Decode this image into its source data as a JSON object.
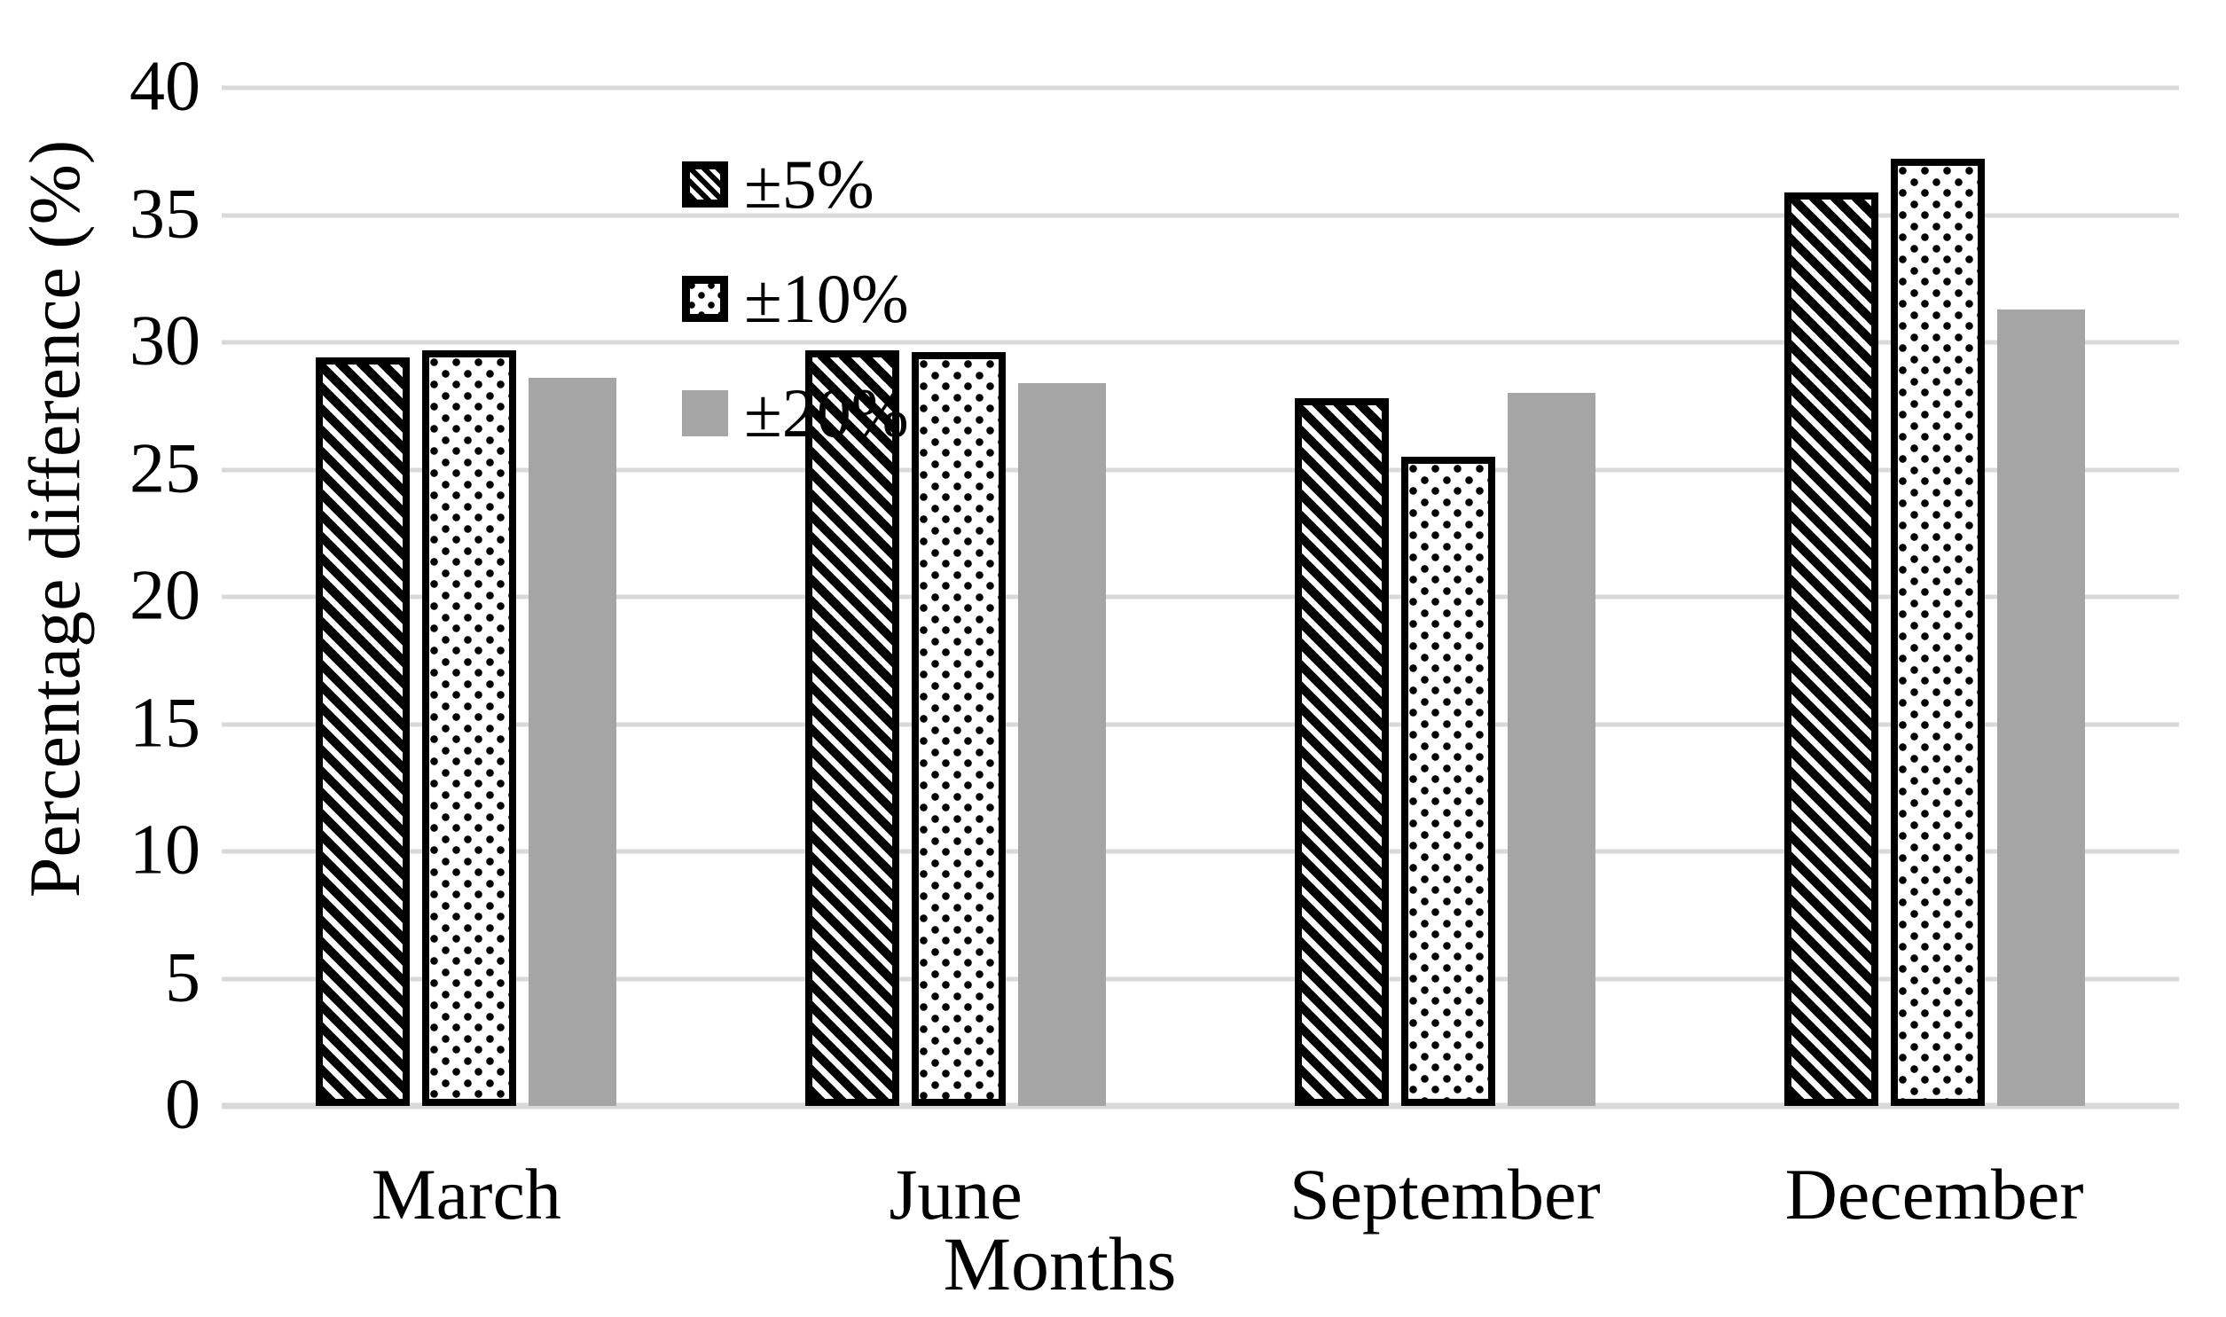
{
  "chart_data": {
    "type": "bar",
    "title": "",
    "categories": [
      "March",
      "June",
      "September",
      "December"
    ],
    "series": [
      {
        "name": "±5%",
        "pattern": "hatch",
        "values": [
          29.4,
          29.7,
          27.8,
          35.9
        ]
      },
      {
        "name": "±10%",
        "pattern": "dots",
        "values": [
          29.7,
          29.6,
          25.5,
          37.2
        ]
      },
      {
        "name": "±20%",
        "pattern": "gray",
        "values": [
          28.6,
          28.4,
          28.0,
          31.3
        ]
      }
    ],
    "xlabel": "Months",
    "ylabel": "Percentage difference (%)",
    "ylim": [
      0,
      40
    ],
    "y_ticks": [
      0,
      5,
      10,
      15,
      20,
      25,
      30,
      35,
      40
    ],
    "grid": true,
    "legend_position": "top-left-inside"
  },
  "colors": {
    "bar_gray": "#a5a5a5",
    "gridline": "#d9d9d9",
    "pattern_black": "#000000",
    "background": "#ffffff",
    "text": "#000000"
  }
}
